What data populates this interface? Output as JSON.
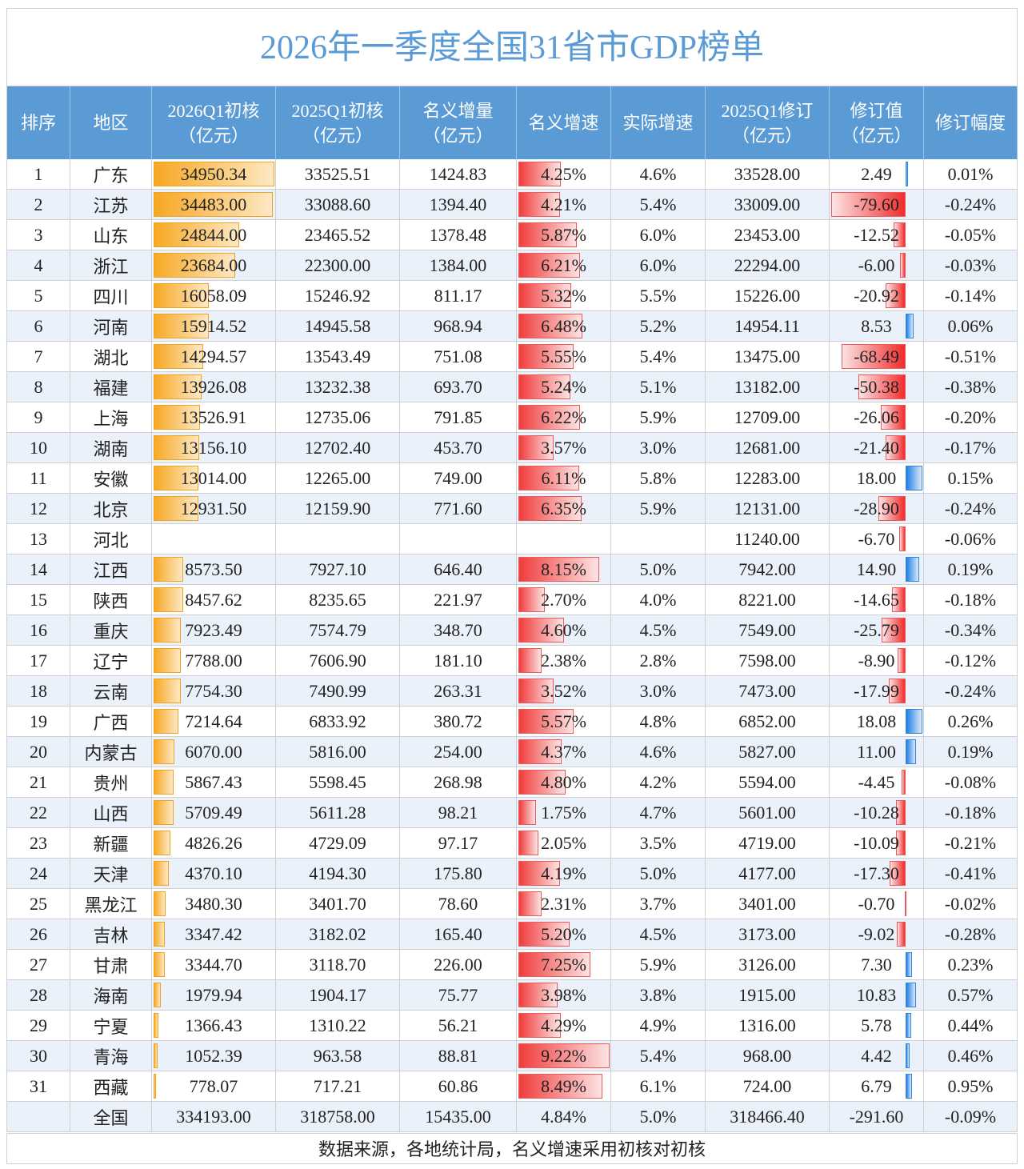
{
  "title": "2026年一季度全国31省市GDP榜单",
  "headers": [
    [
      "排序"
    ],
    [
      "地区"
    ],
    [
      "2026Q1初核",
      "（亿元）"
    ],
    [
      "2025Q1初核",
      "（亿元）"
    ],
    [
      "名义增量",
      "（亿元）"
    ],
    [
      "名义增速"
    ],
    [
      "实际增速"
    ],
    [
      "2025Q1修订",
      "（亿元）"
    ],
    [
      "修订值",
      "（亿元）"
    ],
    [
      "修订幅度"
    ]
  ],
  "rows": [
    [
      "1",
      "广东",
      "34950.34",
      "33525.51",
      "1424.83",
      "4.25%",
      "4.6%",
      "33528.00",
      "2.49",
      "0.01%"
    ],
    [
      "2",
      "江苏",
      "34483.00",
      "33088.60",
      "1394.40",
      "4.21%",
      "5.4%",
      "33009.00",
      "-79.60",
      "-0.24%"
    ],
    [
      "3",
      "山东",
      "24844.00",
      "23465.52",
      "1378.48",
      "5.87%",
      "6.0%",
      "23453.00",
      "-12.52",
      "-0.05%"
    ],
    [
      "4",
      "浙江",
      "23684.00",
      "22300.00",
      "1384.00",
      "6.21%",
      "6.0%",
      "22294.00",
      "-6.00",
      "-0.03%"
    ],
    [
      "5",
      "四川",
      "16058.09",
      "15246.92",
      "811.17",
      "5.32%",
      "5.5%",
      "15226.00",
      "-20.92",
      "-0.14%"
    ],
    [
      "6",
      "河南",
      "15914.52",
      "14945.58",
      "968.94",
      "6.48%",
      "5.2%",
      "14954.11",
      "8.53",
      "0.06%"
    ],
    [
      "7",
      "湖北",
      "14294.57",
      "13543.49",
      "751.08",
      "5.55%",
      "5.4%",
      "13475.00",
      "-68.49",
      "-0.51%"
    ],
    [
      "8",
      "福建",
      "13926.08",
      "13232.38",
      "693.70",
      "5.24%",
      "5.1%",
      "13182.00",
      "-50.38",
      "-0.38%"
    ],
    [
      "9",
      "上海",
      "13526.91",
      "12735.06",
      "791.85",
      "6.22%",
      "5.9%",
      "12709.00",
      "-26.06",
      "-0.20%"
    ],
    [
      "10",
      "湖南",
      "13156.10",
      "12702.40",
      "453.70",
      "3.57%",
      "3.0%",
      "12681.00",
      "-21.40",
      "-0.17%"
    ],
    [
      "11",
      "安徽",
      "13014.00",
      "12265.00",
      "749.00",
      "6.11%",
      "5.8%",
      "12283.00",
      "18.00",
      "0.15%"
    ],
    [
      "12",
      "北京",
      "12931.50",
      "12159.90",
      "771.60",
      "6.35%",
      "5.9%",
      "12131.00",
      "-28.90",
      "-0.24%"
    ],
    [
      "13",
      "河北",
      null,
      null,
      null,
      null,
      null,
      "11240.00",
      "-6.70",
      "-0.06%"
    ],
    [
      "14",
      "江西",
      "8573.50",
      "7927.10",
      "646.40",
      "8.15%",
      "5.0%",
      "7942.00",
      "14.90",
      "0.19%"
    ],
    [
      "15",
      "陕西",
      "8457.62",
      "8235.65",
      "221.97",
      "2.70%",
      "4.0%",
      "8221.00",
      "-14.65",
      "-0.18%"
    ],
    [
      "16",
      "重庆",
      "7923.49",
      "7574.79",
      "348.70",
      "4.60%",
      "4.5%",
      "7549.00",
      "-25.79",
      "-0.34%"
    ],
    [
      "17",
      "辽宁",
      "7788.00",
      "7606.90",
      "181.10",
      "2.38%",
      "2.8%",
      "7598.00",
      "-8.90",
      "-0.12%"
    ],
    [
      "18",
      "云南",
      "7754.30",
      "7490.99",
      "263.31",
      "3.52%",
      "3.0%",
      "7473.00",
      "-17.99",
      "-0.24%"
    ],
    [
      "19",
      "广西",
      "7214.64",
      "6833.92",
      "380.72",
      "5.57%",
      "4.8%",
      "6852.00",
      "18.08",
      "0.26%"
    ],
    [
      "20",
      "内蒙古",
      "6070.00",
      "5816.00",
      "254.00",
      "4.37%",
      "4.6%",
      "5827.00",
      "11.00",
      "0.19%"
    ],
    [
      "21",
      "贵州",
      "5867.43",
      "5598.45",
      "268.98",
      "4.80%",
      "4.2%",
      "5594.00",
      "-4.45",
      "-0.08%"
    ],
    [
      "22",
      "山西",
      "5709.49",
      "5611.28",
      "98.21",
      "1.75%",
      "4.7%",
      "5601.00",
      "-10.28",
      "-0.18%"
    ],
    [
      "23",
      "新疆",
      "4826.26",
      "4729.09",
      "97.17",
      "2.05%",
      "3.5%",
      "4719.00",
      "-10.09",
      "-0.21%"
    ],
    [
      "24",
      "天津",
      "4370.10",
      "4194.30",
      "175.80",
      "4.19%",
      "5.0%",
      "4177.00",
      "-17.30",
      "-0.41%"
    ],
    [
      "25",
      "黑龙江",
      "3480.30",
      "3401.70",
      "78.60",
      "2.31%",
      "3.7%",
      "3401.00",
      "-0.70",
      "-0.02%"
    ],
    [
      "26",
      "吉林",
      "3347.42",
      "3182.02",
      "165.40",
      "5.20%",
      "4.5%",
      "3173.00",
      "-9.02",
      "-0.28%"
    ],
    [
      "27",
      "甘肃",
      "3344.70",
      "3118.70",
      "226.00",
      "7.25%",
      "5.9%",
      "3126.00",
      "7.30",
      "0.23%"
    ],
    [
      "28",
      "海南",
      "1979.94",
      "1904.17",
      "75.77",
      "3.98%",
      "3.8%",
      "1915.00",
      "10.83",
      "0.57%"
    ],
    [
      "29",
      "宁夏",
      "1366.43",
      "1310.22",
      "56.21",
      "4.29%",
      "4.9%",
      "1316.00",
      "5.78",
      "0.44%"
    ],
    [
      "30",
      "青海",
      "1052.39",
      "963.58",
      "88.81",
      "9.22%",
      "5.4%",
      "968.00",
      "4.42",
      "0.46%"
    ],
    [
      "31",
      "西藏",
      "778.07",
      "717.21",
      "60.86",
      "8.49%",
      "6.1%",
      "724.00",
      "6.79",
      "0.95%"
    ]
  ],
  "total": [
    null,
    "全国",
    "334193.00",
    "318758.00",
    "15435.00",
    "4.84%",
    "5.0%",
    "318466.40",
    "-291.60",
    "-0.09%"
  ],
  "footnote": "数据来源，各地统计局，名义增速采用初核对初核"
}
